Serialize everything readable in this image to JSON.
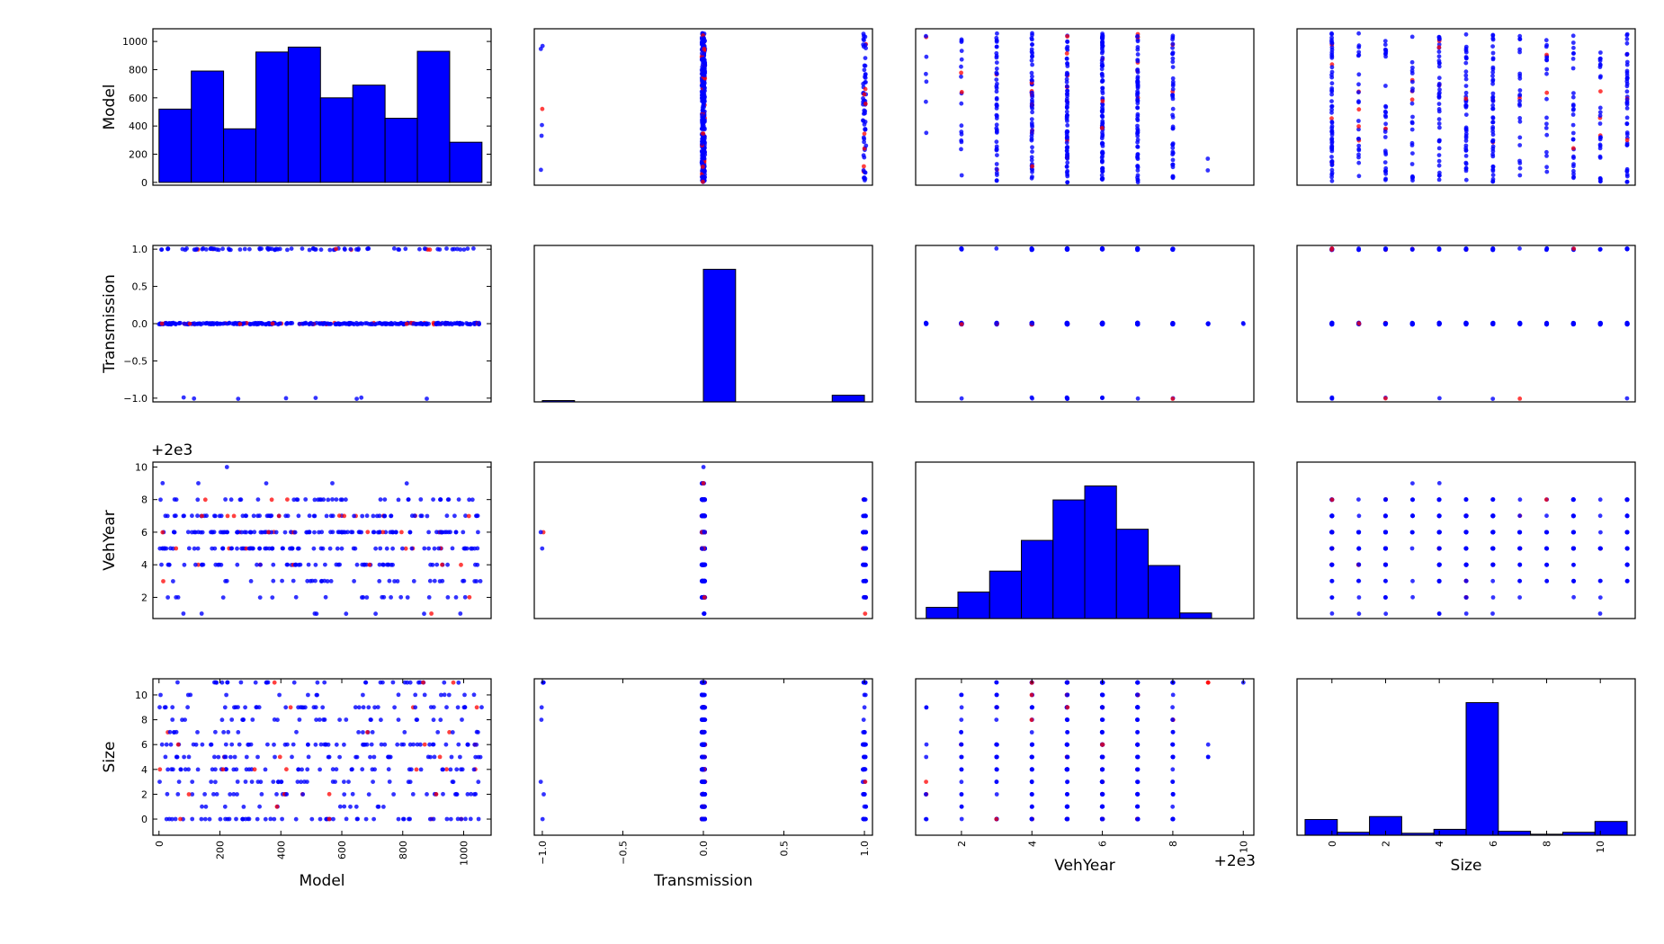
{
  "chart_data": {
    "type": "scatter",
    "kind": "scatter-matrix",
    "variables": [
      "Model",
      "Transmission",
      "VehYear",
      "Size"
    ],
    "colors": {
      "primary": "#0000ff",
      "secondary": "#ff0000"
    },
    "grid": false,
    "offsets": {
      "VehYear": "+2e3"
    },
    "axes": {
      "Model": {
        "range": [
          -20,
          1090
        ],
        "ticks": [
          0,
          200,
          400,
          600,
          800,
          1000
        ]
      },
      "Transmission": {
        "range": [
          -1.05,
          1.05
        ],
        "ticks": [
          -1.0,
          -0.5,
          0.0,
          0.5,
          1.0
        ]
      },
      "VehYear": {
        "range": [
          0.7,
          10.3
        ],
        "ticks": [
          2,
          4,
          6,
          8,
          10
        ]
      },
      "Size": {
        "range": [
          -1.3,
          11.3
        ],
        "ticks": [
          0,
          2,
          4,
          6,
          8,
          10
        ]
      }
    },
    "histograms": {
      "Model": {
        "bin_edges": [
          0,
          106,
          212,
          318,
          424,
          530,
          636,
          742,
          848,
          954,
          1060
        ],
        "counts": [
          520,
          790,
          380,
          925,
          960,
          600,
          690,
          455,
          930,
          285
        ],
        "ylim": [
          -20,
          1090
        ],
        "yticks": [
          0,
          200,
          400,
          600,
          800,
          1000
        ]
      },
      "Transmission": {
        "bin_edges": [
          -1.0,
          -0.8,
          -0.6,
          -0.4,
          -0.2,
          0.0,
          0.2,
          0.4,
          0.6,
          0.8,
          1.0
        ],
        "counts": [
          1,
          0,
          0,
          0,
          0,
          100,
          0,
          0,
          0,
          5
        ]
      },
      "VehYear": {
        "bin_edges": [
          1,
          1.9,
          2.8,
          3.7,
          4.6,
          5.5,
          6.4,
          7.3,
          8.2,
          9.1,
          10
        ],
        "counts": [
          8,
          19,
          34,
          56,
          85,
          95,
          64,
          38,
          4,
          0
        ]
      },
      "Size": {
        "bin_edges": [
          -1,
          0.2,
          1.4,
          2.6,
          3.8,
          5.0,
          6.2,
          7.4,
          8.6,
          9.8,
          11
        ],
        "counts": [
          16,
          3,
          19,
          2,
          6,
          135,
          4,
          1,
          3,
          14
        ]
      }
    },
    "tick_labels": {
      "Model": [
        "0",
        "200",
        "400",
        "600",
        "800",
        "1000"
      ],
      "Transmission": [
        "−1.0",
        "−0.5",
        "0.0",
        "0.5",
        "1.0"
      ],
      "VehYear": [
        "2",
        "4",
        "6",
        "8",
        "10"
      ],
      "Size": [
        "0",
        "2",
        "4",
        "6",
        "8",
        "10"
      ]
    }
  }
}
